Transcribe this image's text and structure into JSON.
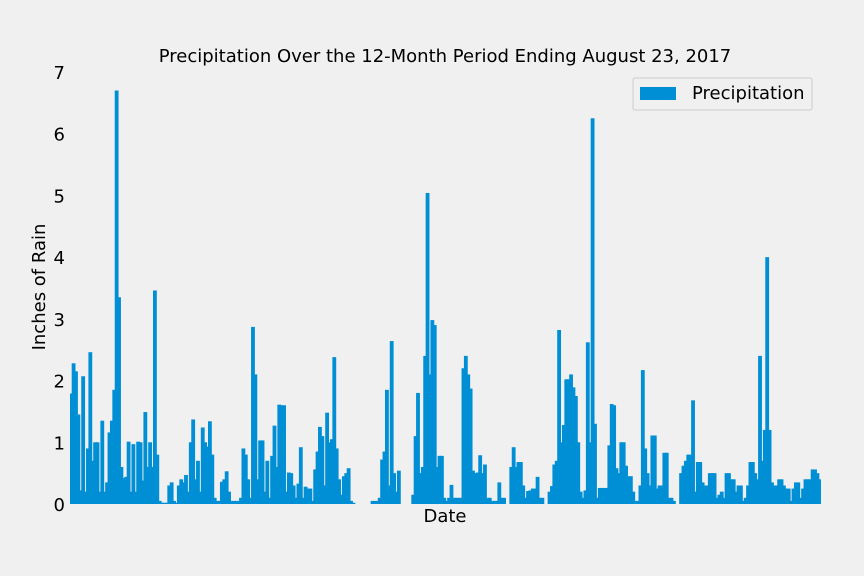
{
  "chart_data": {
    "type": "bar",
    "title": "Precipitation Over the 12-Month Period Ending August 23, 2017",
    "xlabel": "Date",
    "ylabel": "Inches of Rain",
    "ylim": [
      0,
      7
    ],
    "yticks": [
      "0",
      "1",
      "2",
      "3",
      "4",
      "5",
      "6",
      "7"
    ],
    "grid": "none",
    "legend_position": "top-right",
    "series": [
      {
        "name": "Precipitation",
        "color": "#008fd5",
        "values": [
          1.79,
          2.28,
          2.15,
          1.45,
          0.22,
          2.07,
          0.2,
          0.9,
          2.46,
          0.7,
          1.0,
          1.0,
          0.2,
          1.35,
          0.2,
          0.35,
          1.16,
          1.35,
          1.85,
          6.7,
          3.35,
          0.6,
          0.42,
          0.44,
          1.01,
          0.2,
          0.97,
          0.2,
          1.01,
          1.0,
          0.38,
          1.49,
          0.6,
          1.0,
          0.6,
          3.46,
          0.8,
          0.05,
          0.02,
          0.02,
          0.02,
          0.3,
          0.35,
          0.05,
          0.02,
          0.3,
          0.4,
          0.35,
          0.47,
          0.2,
          1.0,
          1.37,
          0.4,
          0.7,
          0.2,
          1.24,
          1.0,
          0.93,
          1.34,
          0.8,
          0.1,
          0.05,
          0.05,
          0.36,
          0.4,
          0.53,
          0.2,
          0.05,
          0.05,
          0.05,
          0.05,
          0.1,
          0.9,
          0.8,
          0.4,
          0.1,
          2.87,
          2.1,
          0.4,
          1.03,
          1.03,
          0.2,
          0.7,
          0.1,
          0.78,
          1.27,
          0.6,
          1.61,
          1.6,
          1.6,
          0.2,
          0.51,
          0.5,
          0.3,
          0.1,
          0.33,
          0.92,
          0.1,
          0.28,
          0.25,
          0.25,
          0.05,
          0.56,
          0.85,
          1.25,
          1.1,
          0.3,
          1.48,
          1.0,
          1.05,
          2.38,
          0.9,
          0.4,
          0.15,
          0.45,
          0.5,
          0.58,
          0.05,
          0.02,
          0.0,
          0.0,
          0.0,
          0.0,
          0.0,
          0.0,
          0.0,
          0.05,
          0.05,
          0.05,
          0.1,
          0.72,
          0.85,
          1.85,
          0.3,
          2.64,
          0.5,
          0.2,
          0.54,
          0.0,
          0.0,
          0.0,
          0.0,
          0.0,
          0.15,
          1.1,
          1.8,
          0.5,
          0.6,
          2.4,
          5.04,
          2.1,
          2.98,
          2.9,
          0.6,
          0.78,
          0.78,
          0.1,
          0.05,
          0.1,
          0.31,
          0.1,
          0.1,
          0.1,
          0.1,
          2.2,
          2.4,
          2.1,
          1.87,
          0.54,
          0.5,
          0.51,
          0.79,
          0.5,
          0.64,
          0.1,
          0.1,
          0.05,
          0.05,
          0.05,
          0.35,
          0.1,
          0.1,
          0.0,
          0.0,
          0.6,
          0.92,
          0.6,
          0.68,
          0.68,
          0.3,
          0.1,
          0.21,
          0.22,
          0.25,
          0.25,
          0.44,
          0.1,
          0.1,
          0.0,
          0.0,
          0.2,
          0.29,
          0.64,
          0.7,
          2.82,
          1.0,
          1.28,
          2.02,
          2.02,
          2.1,
          1.89,
          1.75,
          1.0,
          0.2,
          0.1,
          0.22,
          2.62,
          1.0,
          6.25,
          1.3,
          0.1,
          0.26,
          0.26,
          0.26,
          0.26,
          0.95,
          1.62,
          1.6,
          0.58,
          0.5,
          1.0,
          1.0,
          0.62,
          0.45,
          0.45,
          0.2,
          0.05,
          0.05,
          0.3,
          2.17,
          0.9,
          0.5,
          0.3,
          1.11,
          1.11,
          0.25,
          0.3,
          0.3,
          0.83,
          0.83,
          0.1,
          0.1,
          0.05,
          0.0,
          0.0,
          0.5,
          0.62,
          0.7,
          0.8,
          0.8,
          1.68,
          0.2,
          0.68,
          0.68,
          0.35,
          0.3,
          0.3,
          0.5,
          0.5,
          0.5,
          0.1,
          0.15,
          0.2,
          0.1,
          0.5,
          0.5,
          0.4,
          0.4,
          0.2,
          0.3,
          0.3,
          0.05,
          0.1,
          0.3,
          0.68,
          0.68,
          0.5,
          0.4,
          2.4,
          0.7,
          1.2,
          4.0,
          1.2,
          0.35,
          0.3,
          0.3,
          0.4,
          0.4,
          0.3,
          0.25,
          0.25,
          0.05,
          0.25,
          0.35,
          0.35,
          0.1,
          0.25,
          0.4,
          0.4,
          0.4,
          0.56,
          0.56,
          0.5,
          0.4
        ]
      }
    ]
  }
}
